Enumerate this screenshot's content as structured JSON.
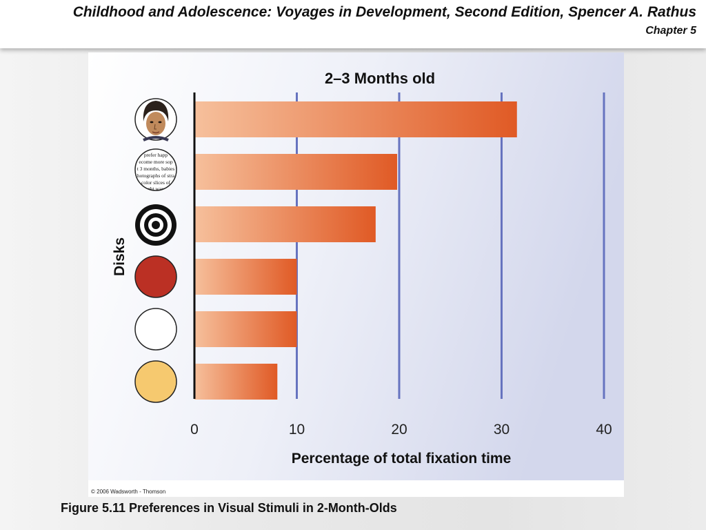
{
  "slide": {
    "header_title": "Childhood and Adolescence: Voyages in Development, Second Edition, Spencer A. Rathus",
    "header_chapter": "Chapter 5",
    "figure_caption": "Figure 5.11 Preferences in Visual Stimuli in 2-Month-Olds",
    "copyright": "© 2006 Wadsworth - Thomson"
  },
  "disk_print_text": [
    "prefer happ",
    "ecome more sop",
    "t 3 months, babies",
    "hotographs of stra",
    "color slices of",
    "ght way"
  ],
  "colors": {
    "bar_light": "#f6c09c",
    "bar_dark": "#e05a25",
    "gridline": "#6673bf",
    "red_disk": "#bb3024",
    "yellow_disk": "#f6c96f"
  },
  "chart_data": {
    "type": "bar",
    "orientation": "horizontal",
    "title": "2–3 Months old",
    "xlabel": "Percentage of total fixation time",
    "ylabel": "Disks",
    "xlim": [
      0,
      40
    ],
    "xticks": [
      "0",
      "10",
      "20",
      "30",
      "40"
    ],
    "grid": "vertical",
    "categories": [
      "face-icon",
      "newsprint-icon",
      "bullseye-icon",
      "red-disk-icon",
      "white-disk-icon",
      "yellow-disk-icon"
    ],
    "values": [
      31.5,
      19.8,
      17.7,
      10.0,
      10.0,
      8.1
    ]
  }
}
